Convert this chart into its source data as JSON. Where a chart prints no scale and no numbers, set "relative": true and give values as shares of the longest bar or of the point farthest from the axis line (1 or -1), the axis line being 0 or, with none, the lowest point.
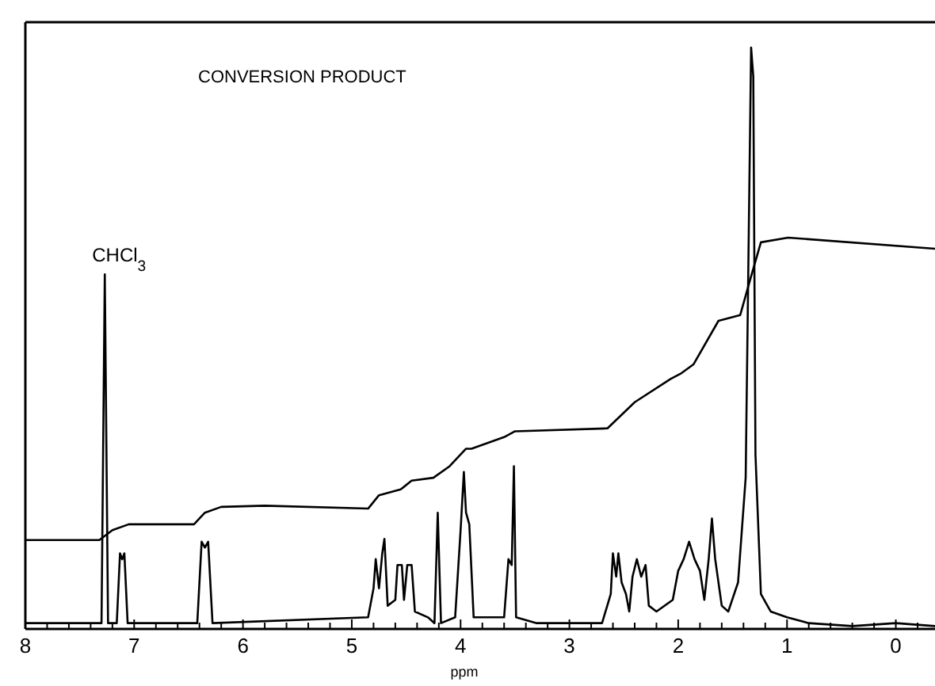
{
  "chart_data": {
    "type": "line",
    "title": "CONVERSION PRODUCT",
    "xlabel": "ppm",
    "relative": true,
    "tick_labels": "x",
    "grid": false,
    "marker": "none",
    "line_style": "solid",
    "xlim": [
      8,
      -0.36
    ],
    "xticks": [
      8,
      {
        "value": 7.8,
        "label": null
      },
      {
        "value": 7.6,
        "label": null
      },
      {
        "value": 7.4,
        "label": null
      },
      {
        "value": 7.2,
        "label": null
      },
      7,
      {
        "value": 6.8,
        "label": null
      },
      {
        "value": 6.6,
        "label": null
      },
      {
        "value": 6.4,
        "label": null
      },
      {
        "value": 6.2,
        "label": null
      },
      6,
      {
        "value": 5.8,
        "label": null
      },
      {
        "value": 5.6,
        "label": null
      },
      {
        "value": 5.4,
        "label": null
      },
      {
        "value": 5.2,
        "label": null
      },
      5,
      {
        "value": 4.8,
        "label": null
      },
      {
        "value": 4.6,
        "label": null
      },
      {
        "value": 4.4,
        "label": null
      },
      {
        "value": 4.2,
        "label": null
      },
      4,
      {
        "value": 3.8,
        "label": null
      },
      {
        "value": 3.6,
        "label": null
      },
      {
        "value": 3.4,
        "label": null
      },
      {
        "value": 3.2,
        "label": null
      },
      3,
      {
        "value": 2.8,
        "label": null
      },
      {
        "value": 2.6,
        "label": null
      },
      {
        "value": 2.4,
        "label": null
      },
      {
        "value": 2.2,
        "label": null
      },
      2,
      {
        "value": 1.8,
        "label": null
      },
      {
        "value": 1.6,
        "label": null
      },
      {
        "value": 1.4,
        "label": null
      },
      {
        "value": 1.2,
        "label": null
      },
      1,
      {
        "value": 0.8,
        "label": null
      },
      {
        "value": 0.6,
        "label": null
      },
      {
        "value": 0.4,
        "label": null
      },
      {
        "value": 0.2,
        "label": null
      },
      0,
      {
        "value": -0.2,
        "label": null
      }
    ],
    "annotations": [
      {
        "text": "CHCl$_{3}$",
        "x": 7.27,
        "y": 0.61
      }
    ],
    "series": [
      {
        "color": "#000000",
        "x": [
          8.0,
          7.3,
          7.27,
          7.24,
          7.16,
          7.13,
          7.11,
          7.09,
          7.06,
          6.42,
          6.38,
          6.35,
          6.32,
          6.28,
          4.85,
          4.8,
          4.78,
          4.75,
          4.72,
          4.7,
          4.67,
          4.6,
          4.58,
          4.54,
          4.52,
          4.49,
          4.45,
          4.42,
          4.3,
          4.24,
          4.21,
          4.18,
          4.05,
          4.0,
          3.97,
          3.95,
          3.92,
          3.88,
          3.6,
          3.56,
          3.53,
          3.51,
          3.49,
          3.3,
          2.7,
          2.62,
          2.6,
          2.57,
          2.55,
          2.52,
          2.48,
          2.45,
          2.42,
          2.38,
          2.34,
          2.3,
          2.27,
          2.2,
          2.05,
          2.0,
          1.95,
          1.9,
          1.85,
          1.8,
          1.76,
          1.72,
          1.69,
          1.66,
          1.6,
          1.54,
          1.45,
          1.38,
          1.33,
          1.31,
          1.29,
          1.24,
          1.15,
          1.0,
          0.8,
          0.4,
          0,
          -0.36
        ],
        "values": [
          0.01,
          0.01,
          0.61,
          0.01,
          0.01,
          0.13,
          0.12,
          0.13,
          0.01,
          0.01,
          0.15,
          0.14,
          0.15,
          0.01,
          0.02,
          0.07,
          0.12,
          0.07,
          0.13,
          0.155,
          0.04,
          0.05,
          0.11,
          0.11,
          0.05,
          0.11,
          0.11,
          0.03,
          0.02,
          0.01,
          0.2,
          0.01,
          0.02,
          0.17,
          0.27,
          0.2,
          0.18,
          0.02,
          0.02,
          0.12,
          0.11,
          0.28,
          0.02,
          0.01,
          0.01,
          0.06,
          0.13,
          0.09,
          0.13,
          0.08,
          0.06,
          0.03,
          0.09,
          0.12,
          0.09,
          0.11,
          0.04,
          0.03,
          0.05,
          0.1,
          0.12,
          0.15,
          0.12,
          0.1,
          0.05,
          0.12,
          0.19,
          0.12,
          0.04,
          0.03,
          0.08,
          0.26,
          1.0,
          0.95,
          0.3,
          0.06,
          0.03,
          0.02,
          0.01,
          0.005,
          0.01,
          0.005
        ]
      },
      {
        "color": "#000000",
        "x": [
          8.0,
          7.32,
          7.2,
          7.05,
          6.45,
          6.35,
          6.2,
          5.8,
          4.85,
          4.75,
          4.55,
          4.45,
          4.25,
          4.1,
          3.95,
          3.9,
          3.6,
          3.5,
          2.65,
          2.4,
          2.07,
          1.97,
          1.86,
          1.63,
          1.43,
          1.34,
          1.24,
          0.99,
          -0.36
        ],
        "values": [
          0.153,
          0.153,
          0.17,
          0.18,
          0.18,
          0.2,
          0.21,
          0.212,
          0.207,
          0.23,
          0.24,
          0.255,
          0.26,
          0.28,
          0.31,
          0.31,
          0.33,
          0.34,
          0.345,
          0.39,
          0.43,
          0.44,
          0.455,
          0.53,
          0.54,
          0.6,
          0.665,
          0.673,
          0.654
        ]
      }
    ]
  }
}
